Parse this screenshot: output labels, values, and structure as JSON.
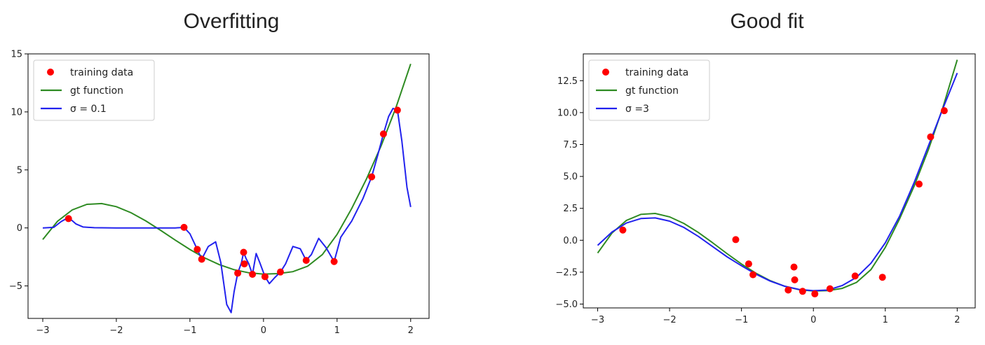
{
  "chart_data": [
    {
      "type": "line",
      "title": "Overfitting",
      "xlabel": "",
      "ylabel": "",
      "xlim": [
        -3.2,
        2.25
      ],
      "ylim": [
        -7.8,
        15
      ],
      "xticks": [
        -3,
        -2,
        -1,
        0,
        1,
        2
      ],
      "yticks": [
        -5,
        0,
        5,
        10,
        15
      ],
      "legend_position": "upper-left",
      "training_data": {
        "label": "training data",
        "color": "#ff0000",
        "x": [
          -2.65,
          -1.08,
          -0.9,
          -0.84,
          -0.35,
          -0.27,
          -0.26,
          -0.15,
          0.02,
          0.23,
          0.58,
          0.96,
          1.47,
          1.63,
          1.82
        ],
        "y": [
          0.8,
          0.05,
          -1.85,
          -2.7,
          -3.9,
          -2.1,
          -3.1,
          -4.0,
          -4.2,
          -3.8,
          -2.8,
          -2.9,
          4.4,
          8.1,
          10.15
        ]
      },
      "gt_function": {
        "label": "gt function",
        "color": "#2e8b22",
        "x": [
          -3,
          -2.8,
          -2.6,
          -2.4,
          -2.2,
          -2.0,
          -1.8,
          -1.6,
          -1.4,
          -1.2,
          -1.0,
          -0.8,
          -0.6,
          -0.4,
          -0.2,
          0.0,
          0.2,
          0.4,
          0.6,
          0.8,
          1.0,
          1.2,
          1.4,
          1.6,
          1.8,
          2.0
        ],
        "y": [
          -1.0,
          0.57,
          1.55,
          2.03,
          2.1,
          1.83,
          1.31,
          0.61,
          -0.2,
          -1.05,
          -1.86,
          -2.58,
          -3.17,
          -3.6,
          -3.87,
          -3.98,
          -3.94,
          -3.77,
          -3.3,
          -2.3,
          -0.56,
          1.69,
          4.23,
          7.1,
          10.38,
          14.14
        ]
      },
      "fit": {
        "label": "σ = 0.1",
        "color": "#2222ee",
        "x": [
          -3.0,
          -2.85,
          -2.75,
          -2.65,
          -2.55,
          -2.45,
          -2.3,
          -2.0,
          -1.5,
          -1.2,
          -1.08,
          -1.0,
          -0.9,
          -0.84,
          -0.75,
          -0.65,
          -0.58,
          -0.5,
          -0.44,
          -0.4,
          -0.35,
          -0.3,
          -0.27,
          -0.24,
          -0.2,
          -0.15,
          -0.1,
          -0.05,
          0.02,
          0.08,
          0.15,
          0.23,
          0.3,
          0.4,
          0.5,
          0.58,
          0.65,
          0.75,
          0.85,
          0.96,
          1.05,
          1.2,
          1.35,
          1.47,
          1.55,
          1.63,
          1.7,
          1.76,
          1.82,
          1.88,
          1.95,
          2.0
        ],
        "y": [
          0.0,
          0.05,
          0.55,
          0.9,
          0.35,
          0.08,
          0.02,
          0.0,
          0.0,
          0.0,
          0.05,
          -0.5,
          -1.85,
          -2.7,
          -1.6,
          -1.2,
          -3.0,
          -6.6,
          -7.3,
          -5.5,
          -3.9,
          -3.0,
          -2.1,
          -2.6,
          -3.1,
          -4.0,
          -2.2,
          -3.0,
          -4.2,
          -4.8,
          -4.3,
          -3.8,
          -3.1,
          -1.6,
          -1.8,
          -2.8,
          -2.3,
          -0.9,
          -1.7,
          -2.9,
          -0.8,
          0.6,
          2.5,
          4.4,
          6.2,
          8.1,
          9.6,
          10.3,
          10.15,
          7.5,
          3.5,
          1.8
        ]
      }
    },
    {
      "type": "line",
      "title": "Good fit",
      "xlabel": "",
      "ylabel": "",
      "xlim": [
        -3.2,
        2.25
      ],
      "ylim": [
        -5.3,
        14.6
      ],
      "xticks": [
        -3,
        -2,
        -1,
        0,
        1,
        2
      ],
      "yticks": [
        -5.0,
        -2.5,
        0.0,
        2.5,
        5.0,
        7.5,
        10.0,
        12.5
      ],
      "legend_position": "upper-left",
      "training_data": {
        "label": "training data",
        "color": "#ff0000",
        "x": [
          -2.65,
          -1.08,
          -0.9,
          -0.84,
          -0.35,
          -0.27,
          -0.26,
          -0.15,
          0.02,
          0.23,
          0.58,
          0.96,
          1.47,
          1.63,
          1.82
        ],
        "y": [
          0.8,
          0.05,
          -1.85,
          -2.7,
          -3.9,
          -2.1,
          -3.1,
          -4.0,
          -4.2,
          -3.8,
          -2.8,
          -2.9,
          4.4,
          8.1,
          10.15
        ]
      },
      "gt_function": {
        "label": "gt function",
        "color": "#2e8b22",
        "x": [
          -3,
          -2.8,
          -2.6,
          -2.4,
          -2.2,
          -2.0,
          -1.8,
          -1.6,
          -1.4,
          -1.2,
          -1.0,
          -0.8,
          -0.6,
          -0.4,
          -0.2,
          0.0,
          0.2,
          0.4,
          0.6,
          0.8,
          1.0,
          1.2,
          1.4,
          1.6,
          1.8,
          2.0
        ],
        "y": [
          -1.0,
          0.57,
          1.55,
          2.03,
          2.1,
          1.83,
          1.31,
          0.61,
          -0.2,
          -1.05,
          -1.86,
          -2.58,
          -3.17,
          -3.6,
          -3.87,
          -3.98,
          -3.94,
          -3.77,
          -3.3,
          -2.3,
          -0.56,
          1.69,
          4.23,
          7.1,
          10.38,
          14.14
        ]
      },
      "fit": {
        "label": "σ =3",
        "color": "#2222ee",
        "x": [
          -3,
          -2.8,
          -2.6,
          -2.4,
          -2.2,
          -2.0,
          -1.8,
          -1.6,
          -1.4,
          -1.2,
          -1.0,
          -0.8,
          -0.6,
          -0.4,
          -0.2,
          0.0,
          0.2,
          0.4,
          0.6,
          0.8,
          1.0,
          1.2,
          1.4,
          1.6,
          1.8,
          2.0
        ],
        "y": [
          -0.4,
          0.65,
          1.35,
          1.7,
          1.75,
          1.5,
          1.0,
          0.3,
          -0.5,
          -1.3,
          -2.0,
          -2.65,
          -3.2,
          -3.6,
          -3.85,
          -3.95,
          -3.9,
          -3.55,
          -2.9,
          -1.8,
          -0.2,
          1.9,
          4.5,
          7.4,
          10.3,
          13.1
        ]
      }
    }
  ]
}
